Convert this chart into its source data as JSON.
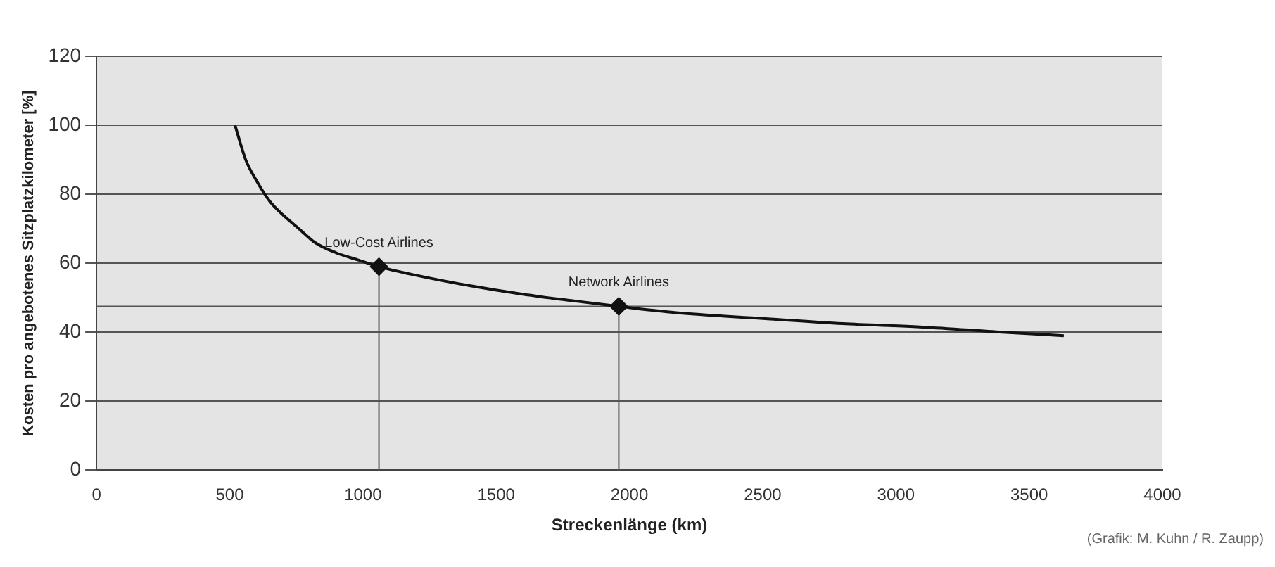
{
  "chart_data": {
    "type": "line",
    "xlabel": "Streckenlänge (km)",
    "ylabel": "Kosten pro angebotenes Sitzplatzkilometer [%]",
    "xlim": [
      0,
      4000
    ],
    "xticks": [
      0,
      500,
      1000,
      1500,
      2000,
      2500,
      3000,
      3500,
      4000
    ],
    "ylim": [
      0,
      120
    ],
    "yticks": [
      0,
      20,
      40,
      60,
      80,
      100,
      120
    ],
    "grid": "y",
    "series": [
      {
        "color": "#111111",
        "x": [
          520,
          560,
          600,
          650,
          700,
          760,
          820,
          900,
          980,
          1060,
          1200,
          1400,
          1600,
          1800,
          1960,
          2200,
          2500,
          2800,
          3100,
          3400,
          3630
        ],
        "values": [
          100,
          90,
          84,
          78,
          74,
          70,
          66,
          63,
          61,
          59,
          56.5,
          53.5,
          51,
          49,
          47.5,
          45.5,
          44,
          42.5,
          41.5,
          40,
          39
        ],
        "marker": "none"
      },
      {
        "type": "scatter",
        "color": "#111111",
        "x": [
          1060,
          1960
        ],
        "values": [
          59,
          47.5
        ],
        "marker": "diamond"
      }
    ],
    "ref_lines": [
      {
        "axis": "x",
        "value": 1060,
        "color": "#555555"
      },
      {
        "axis": "x",
        "value": 1960,
        "color": "#555555"
      },
      {
        "axis": "y",
        "value": 47.5,
        "color": "#555555"
      }
    ],
    "annotations": [
      {
        "text": "Low-Cost Airlines",
        "x": 1060,
        "y": 59
      },
      {
        "text": "Network Airlines",
        "x": 1960,
        "y": 47.5
      },
      "(Grafik: M. Kuhn / R. Zaupp)"
    ],
    "legend": false
  }
}
